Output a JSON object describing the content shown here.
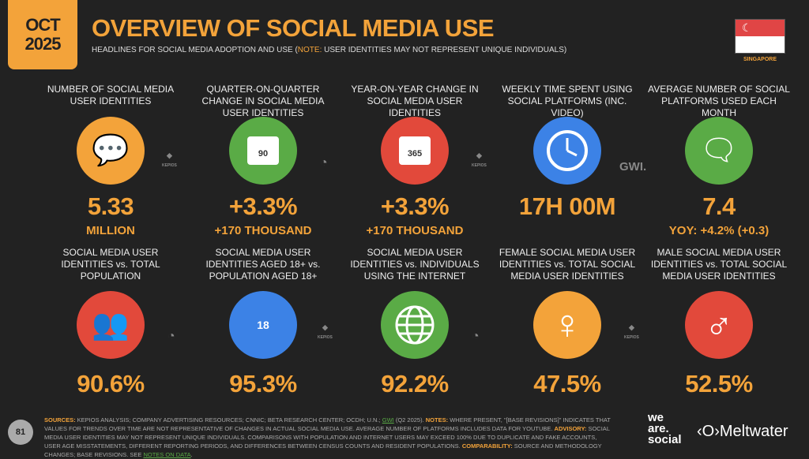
{
  "header": {
    "month": "OCT",
    "year": "2025",
    "title": "OVERVIEW OF SOCIAL MEDIA USE",
    "subtitle": "HEADLINES FOR SOCIAL MEDIA ADOPTION AND USE (",
    "note_label": "NOTE:",
    "note_text": " USER IDENTITIES MAY NOT REPRESENT UNIQUE INDIVIDUALS)",
    "country": "SINGAPORE"
  },
  "colors": {
    "accent": "#f3a33a",
    "green": "#5aab46",
    "red": "#e2493b",
    "blue": "#3c82e6",
    "background": "#222222"
  },
  "row1": [
    {
      "label": "NUMBER OF SOCIAL MEDIA USER IDENTITIES",
      "icon": "chat-bubbles-icon",
      "value": "5.33",
      "sub": "MILLION"
    },
    {
      "label": "QUARTER-ON-QUARTER CHANGE IN SOCIAL MEDIA USER IDENTITIES",
      "icon": "calendar-icon",
      "icon_text": "90",
      "value": "+3.3%",
      "sub": "+170 THOUSAND"
    },
    {
      "label": "YEAR-ON-YEAR CHANGE IN SOCIAL MEDIA USER IDENTITIES",
      "icon": "calendar-icon",
      "icon_text": "365",
      "value": "+3.3%",
      "sub": "+170 THOUSAND"
    },
    {
      "label": "WEEKLY TIME SPENT USING SOCIAL PLATFORMS (INC. VIDEO)",
      "icon": "clock-icon",
      "value": "17H 00M",
      "sub": ""
    },
    {
      "label": "AVERAGE NUMBER OF SOCIAL PLATFORMS USED EACH MONTH",
      "icon": "stacked-chat-icon",
      "value": "7.4",
      "sub": "YOY: +4.2% (+0.3)"
    }
  ],
  "row2": [
    {
      "label": "SOCIAL MEDIA USER IDENTITIES vs. TOTAL POPULATION",
      "icon": "people-icon",
      "value": "90.6%"
    },
    {
      "label": "SOCIAL MEDIA USER IDENTITIES AGED 18+ vs. POPULATION AGED 18+",
      "icon": "adults-18-icon",
      "icon_text": "18",
      "value": "95.3%"
    },
    {
      "label": "SOCIAL MEDIA USER IDENTITIES vs. INDIVIDUALS USING THE INTERNET",
      "icon": "globe-icon",
      "value": "92.2%"
    },
    {
      "label": "FEMALE SOCIAL MEDIA USER IDENTITIES vs. TOTAL SOCIAL MEDIA USER IDENTITIES",
      "icon": "female-icon",
      "value": "47.5%"
    },
    {
      "label": "MALE SOCIAL MEDIA USER IDENTITIES vs. TOTAL SOCIAL MEDIA USER IDENTITIES",
      "icon": "male-icon",
      "value": "52.5%"
    }
  ],
  "logos": {
    "kepios": "KEPIOS",
    "gwi": "GWI."
  },
  "footer": {
    "page": "81",
    "sources_label": "SOURCES:",
    "sources": " KEPIOS ANALYSIS; COMPANY ADVERTISING RESOURCES; CNNIC; BETA RESEARCH CENTER; OCDH; U.N.; ",
    "gwi": "GWI",
    "sources2": " (Q2 2025). ",
    "notes_label": "NOTES:",
    "notes": " WHERE PRESENT, \"[BASE REVISIONS]\" INDICATES THAT VALUES FOR TRENDS OVER TIME ARE NOT REPRESENTATIVE OF CHANGES IN ACTUAL SOCIAL MEDIA USE. AVERAGE NUMBER OF PLATFORMS INCLUDES DATA FOR YOUTUBE. ",
    "advisory_label": "ADVISORY:",
    "advisory": " SOCIAL MEDIA USER IDENTITIES MAY NOT REPRESENT UNIQUE INDIVIDUALS. COMPARISONS WITH POPULATION AND INTERNET USERS MAY EXCEED 100% DUE TO DUPLICATE AND FAKE ACCOUNTS, USER AGE MISSTATEMENTS, DIFFERENT REPORTING PERIODS, AND DIFFERENCES BETWEEN CENSUS COUNTS AND RESIDENT POPULATIONS. ",
    "comparability_label": "COMPARABILITY:",
    "comparability": " SOURCE AND METHODOLOGY CHANGES; BASE REVISIONS. SEE ",
    "notes_link": "NOTES ON DATA",
    "notes_end": "."
  },
  "brands": {
    "we_are_social_1": "we",
    "we_are_social_2": "are.",
    "we_are_social_3": "social",
    "meltwater": "‹O›Meltwater"
  }
}
